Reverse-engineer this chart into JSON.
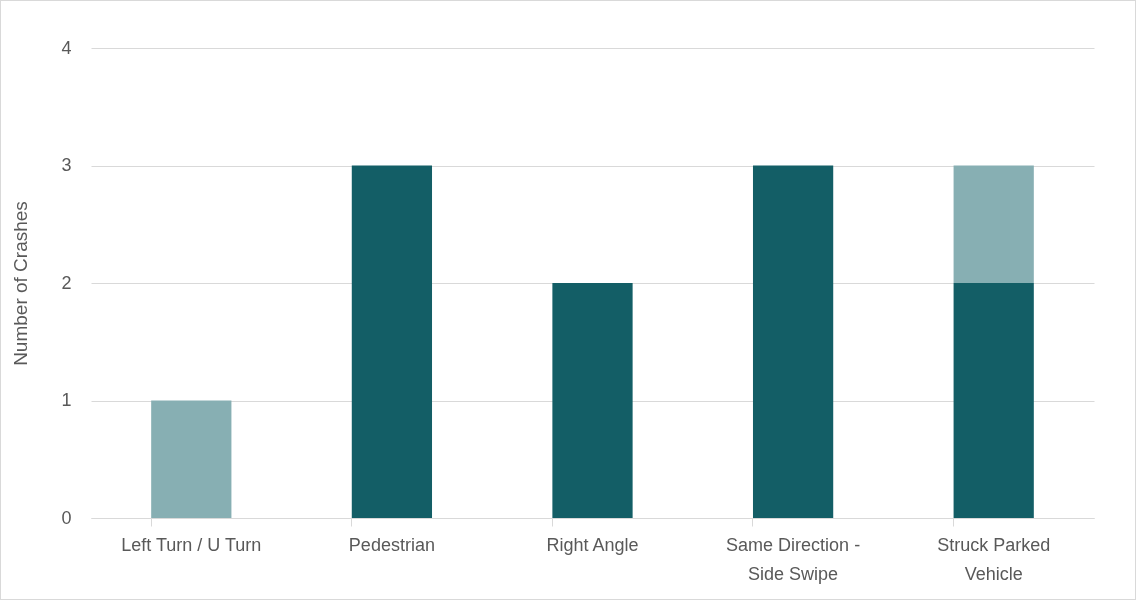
{
  "chart_data": {
    "type": "bar",
    "stacked": true,
    "ylabel": "Number of Crashes",
    "categories": [
      "Left Turn / U Turn",
      "Pedestrian",
      "Right Angle",
      "Same Direction - Side Swipe",
      "Struck Parked Vehicle"
    ],
    "series": [
      {
        "color": "#135e66",
        "values": [
          null,
          3,
          2,
          3,
          2
        ]
      },
      {
        "color": "#87afb3",
        "values": [
          1,
          null,
          null,
          null,
          1
        ]
      }
    ],
    "ylim": [
      0,
      4
    ],
    "yticks": [
      0,
      1,
      2,
      3,
      4
    ],
    "grid": "y",
    "legend": false
  }
}
